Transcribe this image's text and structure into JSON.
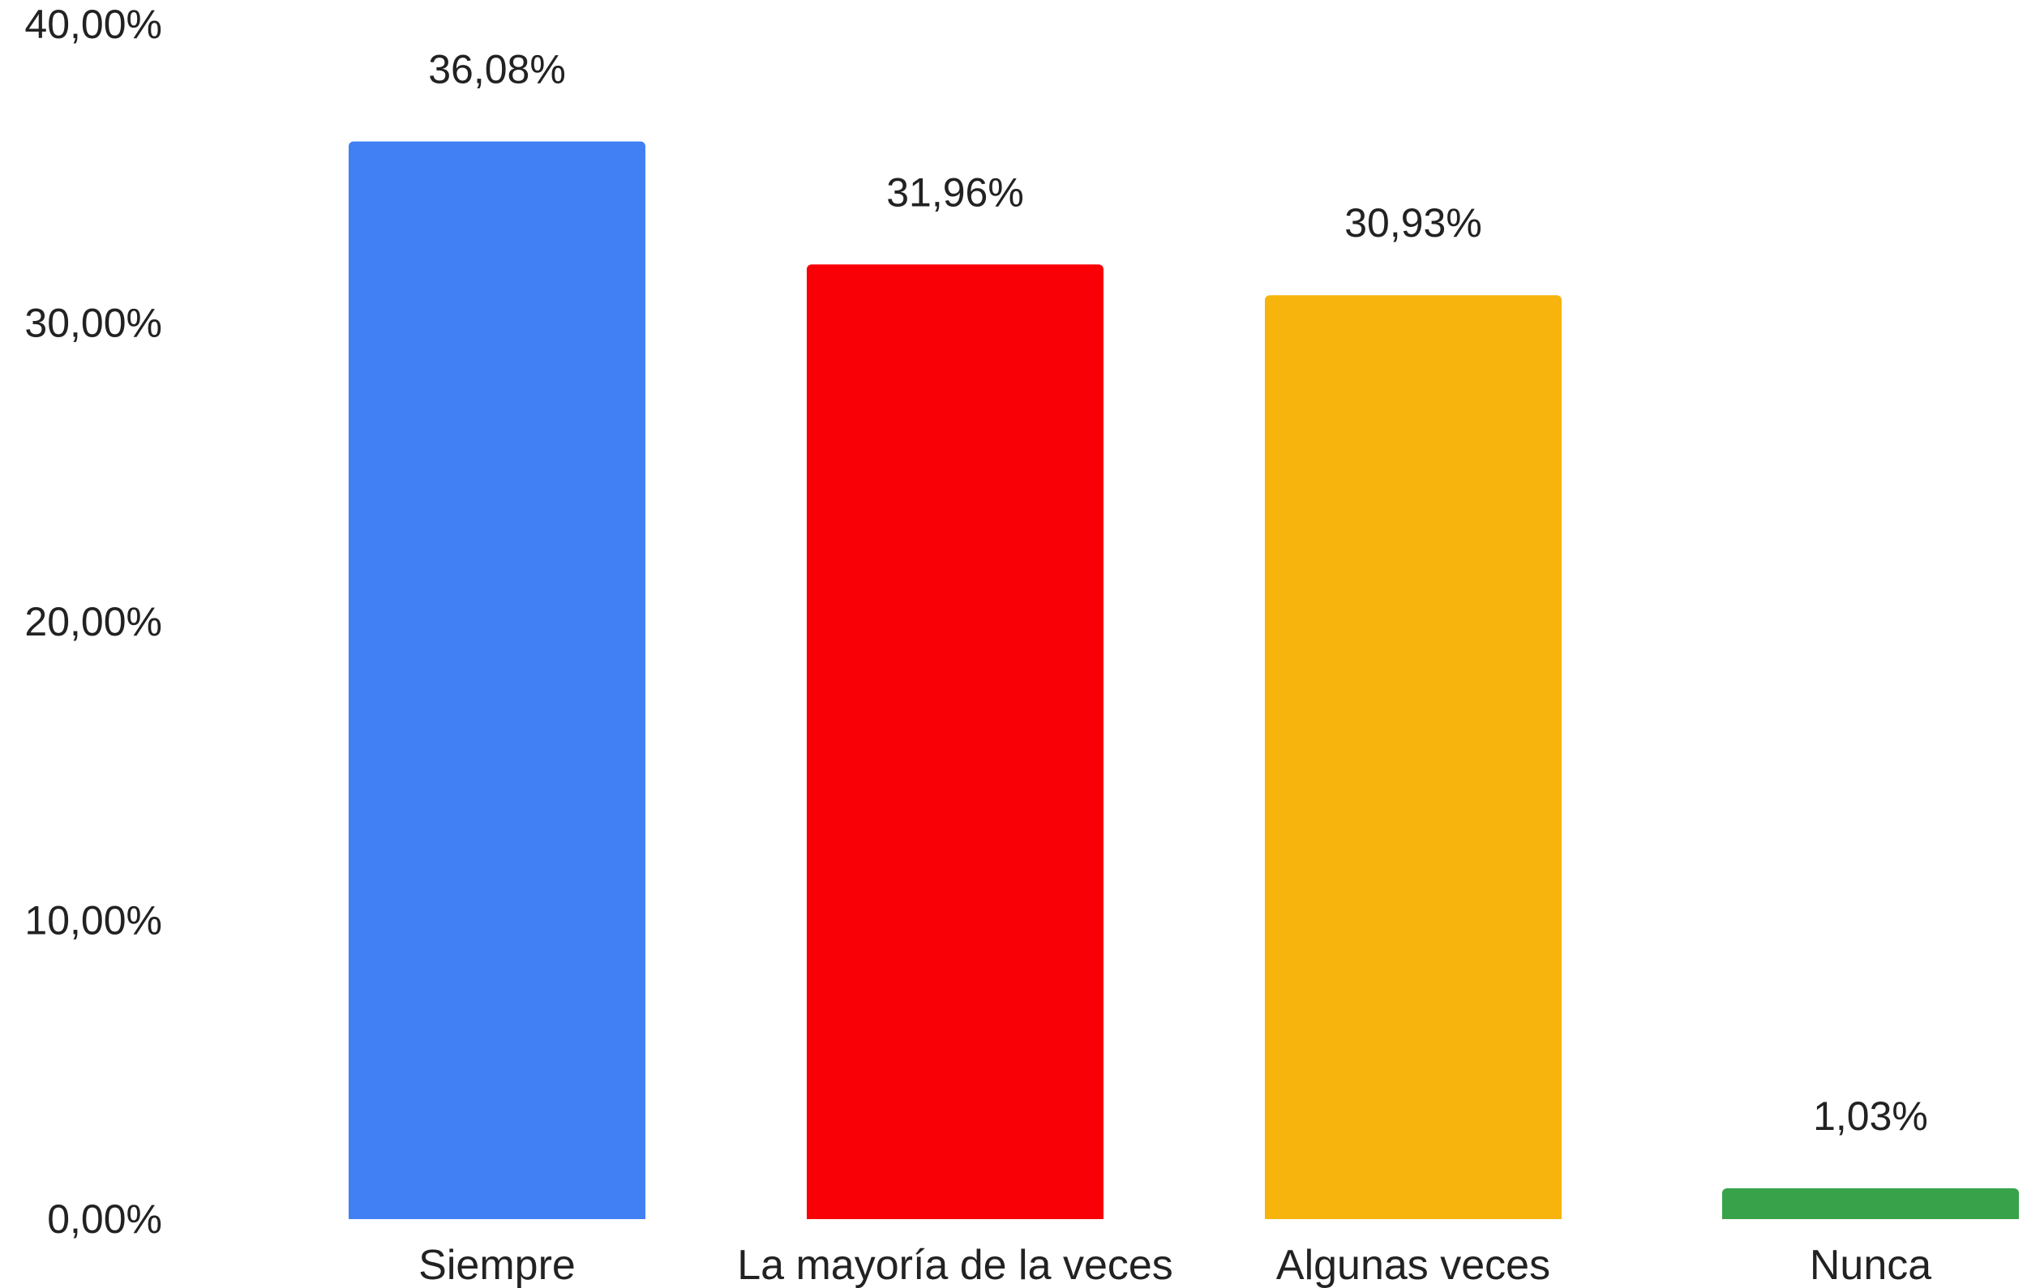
{
  "chart_data": {
    "type": "bar",
    "categories": [
      "Siempre",
      "La mayoría de la veces",
      "Algunas veces",
      "Nunca"
    ],
    "values": [
      36.08,
      31.96,
      30.93,
      1.03
    ],
    "data_labels": [
      "36,08%",
      "31,96%",
      "30,93%",
      "1,03%"
    ],
    "colors": [
      "#4080f4",
      "#f90007",
      "#f6b40c",
      "#38a24a"
    ],
    "ylim": [
      0,
      40
    ],
    "y_ticks": [
      0,
      10,
      20,
      30,
      40
    ],
    "y_tick_labels": [
      "0,00%",
      "10,00%",
      "20,00%",
      "30,00%",
      "40,00%"
    ],
    "grid": false,
    "legend": "none"
  }
}
